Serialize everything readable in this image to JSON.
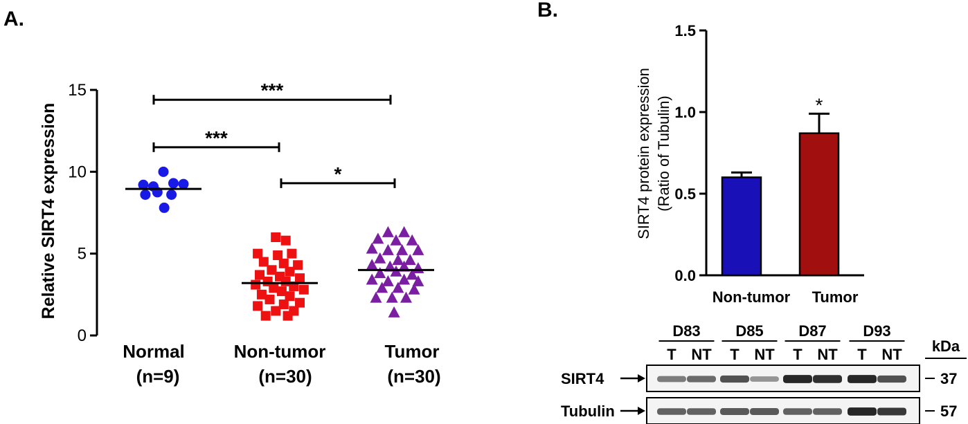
{
  "chart_data": [
    {
      "panel_label": "A.",
      "type": "scatter",
      "ylabel": "Relative SIRT4 expression",
      "ylim": [
        0,
        15
      ],
      "yticks": [
        "0",
        "5",
        "10",
        "15"
      ],
      "groups": [
        {
          "name": "Normal",
          "n_label": "(n=9)",
          "color": "#1a1ae6",
          "marker": "circle",
          "mean": 8.95,
          "points": [
            [
              -0.5,
              9.2
            ],
            [
              -0.25,
              9.1
            ],
            [
              0,
              10.0
            ],
            [
              0.25,
              9.3
            ],
            [
              0.5,
              9.25
            ],
            [
              -0.45,
              8.6
            ],
            [
              -0.15,
              8.75
            ],
            [
              0.2,
              8.6
            ],
            [
              0.02,
              7.8
            ]
          ]
        },
        {
          "name": "Non-tumor",
          "n_label": "(n=30)",
          "color": "#ee1111",
          "marker": "square",
          "mean": 3.2,
          "points": [
            [
              -0.1,
              6.0
            ],
            [
              0.15,
              5.8
            ],
            [
              -0.55,
              5.0
            ],
            [
              -0.05,
              4.9
            ],
            [
              0.3,
              5.0
            ],
            [
              -0.4,
              4.5
            ],
            [
              0.1,
              4.4
            ],
            [
              0.45,
              4.3
            ],
            [
              -0.2,
              4.0
            ],
            [
              0.25,
              3.9
            ],
            [
              -0.5,
              3.7
            ],
            [
              0.0,
              3.6
            ],
            [
              0.5,
              3.5
            ],
            [
              -0.3,
              3.3
            ],
            [
              0.15,
              3.3
            ],
            [
              -0.6,
              3.1
            ],
            [
              0.35,
              3.0
            ],
            [
              -0.15,
              2.9
            ],
            [
              0.6,
              2.8
            ],
            [
              0.05,
              2.7
            ],
            [
              -0.45,
              2.5
            ],
            [
              0.25,
              2.4
            ],
            [
              -0.25,
              2.2
            ],
            [
              0.5,
              2.0
            ],
            [
              -0.55,
              1.8
            ],
            [
              0.1,
              1.9
            ],
            [
              -0.1,
              1.5
            ],
            [
              0.35,
              1.5
            ],
            [
              -0.35,
              1.2
            ],
            [
              0.2,
              1.2
            ]
          ]
        },
        {
          "name": "Tumor",
          "n_label": "(n=30)",
          "color": "#7b1fa2",
          "marker": "triangle",
          "mean": 4.0,
          "points": [
            [
              -0.2,
              6.3
            ],
            [
              0.2,
              6.3
            ],
            [
              -0.45,
              5.9
            ],
            [
              0.0,
              5.8
            ],
            [
              0.4,
              5.8
            ],
            [
              -0.6,
              5.3
            ],
            [
              -0.2,
              5.2
            ],
            [
              0.15,
              5.2
            ],
            [
              0.55,
              5.2
            ],
            [
              -0.4,
              4.7
            ],
            [
              0.05,
              4.6
            ],
            [
              0.35,
              4.6
            ],
            [
              -0.6,
              4.3
            ],
            [
              -0.15,
              4.2
            ],
            [
              0.2,
              4.2
            ],
            [
              0.55,
              4.1
            ],
            [
              -0.4,
              3.8
            ],
            [
              0.0,
              3.9
            ],
            [
              0.4,
              3.7
            ],
            [
              -0.6,
              3.4
            ],
            [
              -0.2,
              3.3
            ],
            [
              0.2,
              3.4
            ],
            [
              0.55,
              3.3
            ],
            [
              -0.35,
              2.9
            ],
            [
              0.05,
              2.9
            ],
            [
              0.45,
              2.8
            ],
            [
              -0.5,
              2.3
            ],
            [
              -0.1,
              2.3
            ],
            [
              0.25,
              2.3
            ],
            [
              -0.05,
              1.4
            ]
          ]
        }
      ],
      "comparisons": [
        {
          "from": "Normal",
          "to": "Tumor",
          "y": 14.4,
          "label": "***"
        },
        {
          "from": "Normal",
          "to": "Non-tumor",
          "y": 11.5,
          "label": "***"
        },
        {
          "from": "Non-tumor",
          "to": "Tumor",
          "y": 9.3,
          "label": "*"
        }
      ]
    },
    {
      "panel_label": "B.",
      "type": "bar",
      "ylabel_line1": "SIRT4 protein expression",
      "ylabel_line2": "(Ratio of Tubulin)",
      "ylim": [
        0,
        1.5
      ],
      "yticks": [
        "0.0",
        "0.5",
        "1.0",
        "1.5"
      ],
      "categories": [
        "Non-tumor",
        "Tumor"
      ],
      "values": [
        0.6,
        0.87
      ],
      "errors": [
        0.03,
        0.12
      ],
      "colors": [
        "#1a10b8",
        "#a10f0f"
      ],
      "significance": [
        "",
        "*"
      ]
    }
  ],
  "blot": {
    "samples": [
      "D83",
      "D85",
      "D87",
      "D93"
    ],
    "lanes": [
      "T",
      "NT",
      "T",
      "NT",
      "T",
      "NT",
      "T",
      "NT"
    ],
    "kda_label": "kDa",
    "rows": [
      {
        "name": "SIRT4",
        "kda": "37",
        "intensity": [
          0.45,
          0.55,
          0.7,
          0.3,
          0.95,
          0.9,
          0.95,
          0.7
        ]
      },
      {
        "name": "Tubulin",
        "kda": "57",
        "intensity": [
          0.6,
          0.6,
          0.65,
          0.65,
          0.6,
          0.6,
          0.95,
          0.85
        ]
      }
    ]
  }
}
